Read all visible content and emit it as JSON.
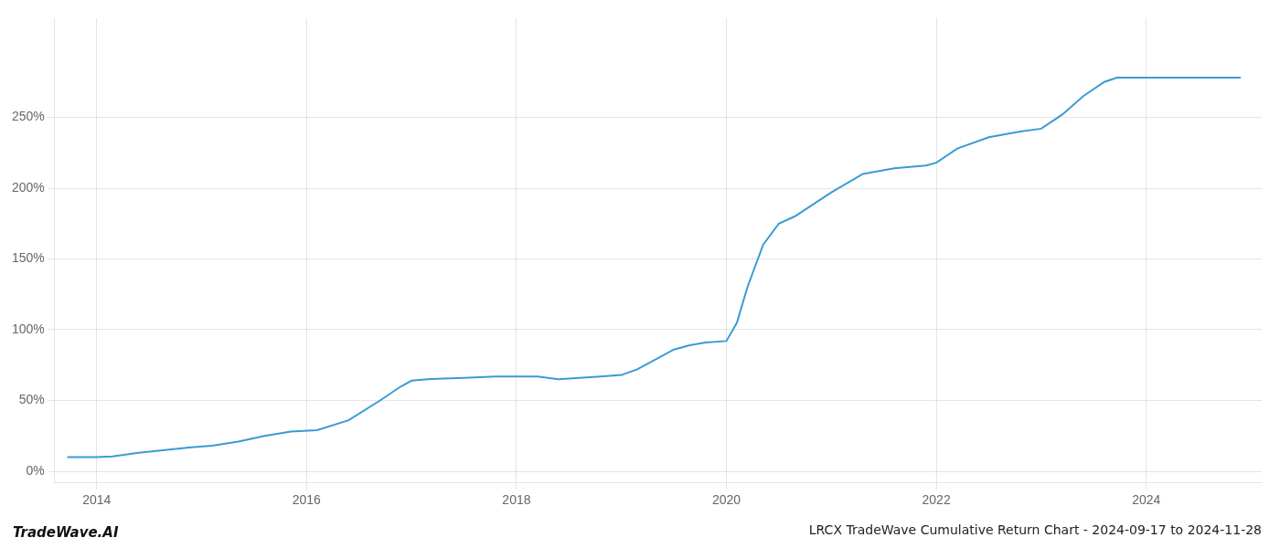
{
  "chart_data": {
    "type": "line",
    "title": "LRCX TradeWave Cumulative Return Chart - 2024-09-17 to 2024-11-28",
    "annotations": [
      "TradeWave.AI"
    ],
    "color": "#3a9bd5",
    "grid": true,
    "xlim": [
      2013.6,
      2025.1
    ],
    "ylim": [
      -8,
      320
    ],
    "xticks": [
      2014,
      2016,
      2018,
      2020,
      2022,
      2024
    ],
    "yticks": [
      {
        "value": 0,
        "label": "0%"
      },
      {
        "value": 50,
        "label": "50%"
      },
      {
        "value": 100,
        "label": "100%"
      },
      {
        "value": 150,
        "label": "150%"
      },
      {
        "value": 200,
        "label": "200%"
      },
      {
        "value": 250,
        "label": "250%"
      }
    ],
    "x": [
      2013.72,
      2014.0,
      2014.15,
      2014.4,
      2014.65,
      2014.9,
      2015.1,
      2015.35,
      2015.6,
      2015.85,
      2016.1,
      2016.4,
      2016.7,
      2016.9,
      2017.0,
      2017.15,
      2017.3,
      2017.5,
      2017.65,
      2017.8,
      2018.0,
      2018.2,
      2018.4,
      2018.6,
      2018.8,
      2019.0,
      2019.15,
      2019.3,
      2019.5,
      2019.65,
      2019.8,
      2020.0,
      2020.1,
      2020.2,
      2020.35,
      2020.5,
      2020.65,
      2021.0,
      2021.3,
      2021.6,
      2021.9,
      2022.0,
      2022.2,
      2022.5,
      2022.8,
      2023.0,
      2023.2,
      2023.4,
      2023.6,
      2023.72,
      2024.0,
      2024.3,
      2024.6,
      2024.9
    ],
    "values": [
      10,
      10,
      10.5,
      13,
      15,
      17,
      18,
      21,
      25,
      28,
      29,
      36,
      50,
      60,
      64,
      65,
      65.5,
      66,
      66.5,
      67,
      67,
      67,
      65,
      66,
      67,
      68,
      72,
      78,
      86,
      89,
      91,
      92,
      105,
      130,
      160,
      175,
      180,
      197,
      210,
      214,
      216,
      218,
      228,
      236,
      240,
      242,
      252,
      265,
      275,
      278,
      278,
      278,
      278,
      278
    ]
  }
}
